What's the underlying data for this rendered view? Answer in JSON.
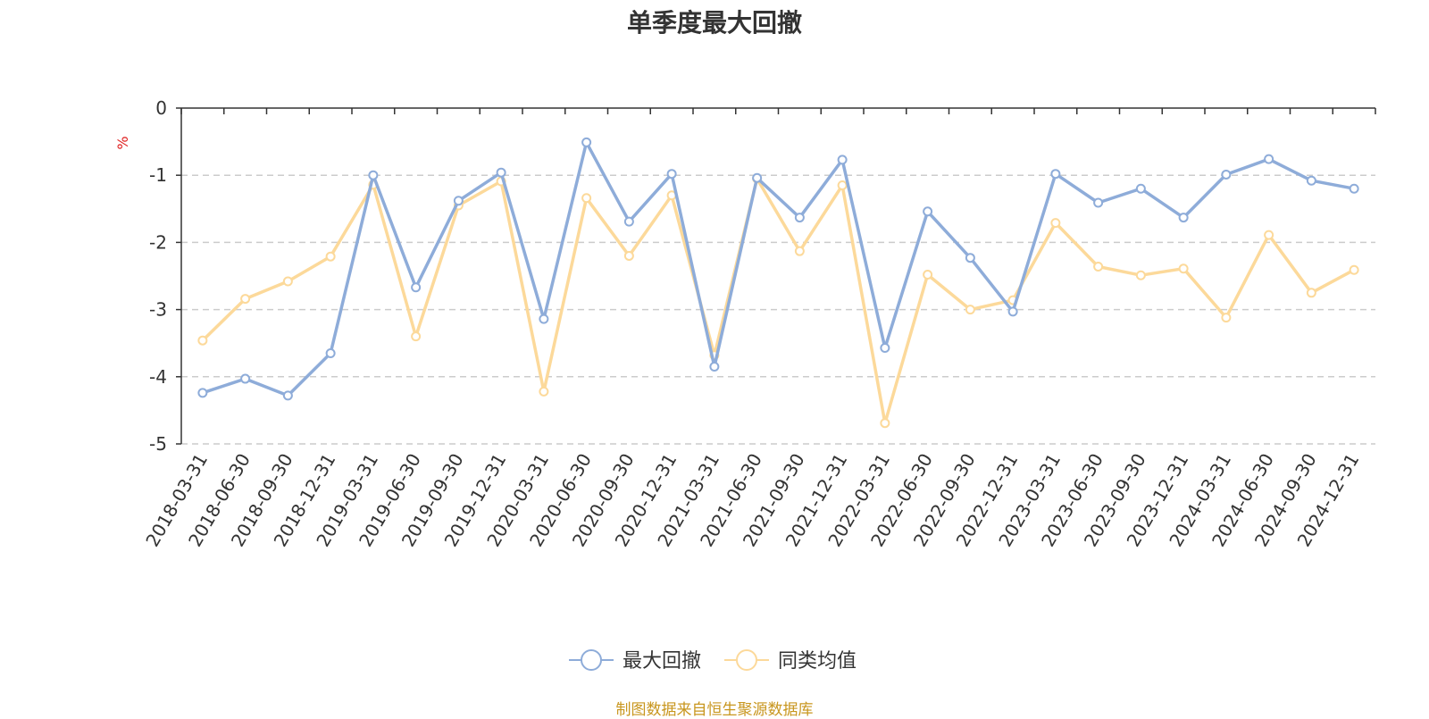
{
  "chart_data": {
    "type": "line",
    "title": "单季度最大回撤",
    "ylabel": "%",
    "ylim": [
      -5,
      0
    ],
    "yticks": [
      0,
      -1,
      -2,
      -3,
      -4,
      -5
    ],
    "grid": true,
    "legend_position": "bottom",
    "categories": [
      "2018-03-31",
      "2018-06-30",
      "2018-09-30",
      "2018-12-31",
      "2019-03-31",
      "2019-06-30",
      "2019-09-30",
      "2019-12-31",
      "2020-03-31",
      "2020-06-30",
      "2020-09-30",
      "2020-12-31",
      "2021-03-31",
      "2021-06-30",
      "2021-09-30",
      "2021-12-31",
      "2022-03-31",
      "2022-06-30",
      "2022-09-30",
      "2022-12-31",
      "2023-03-31",
      "2023-06-30",
      "2023-09-30",
      "2023-12-31",
      "2024-03-31",
      "2024-06-30",
      "2024-09-30",
      "2024-12-31"
    ],
    "series": [
      {
        "name": "最大回撤",
        "color": "#8eacd9",
        "values": [
          -4.24,
          -4.03,
          -4.28,
          -3.65,
          -1.0,
          -2.67,
          -1.38,
          -0.96,
          -3.14,
          -0.51,
          -1.69,
          -0.98,
          -3.85,
          -1.04,
          -1.63,
          -0.77,
          -3.57,
          -1.54,
          -2.23,
          -3.03,
          -0.98,
          -1.41,
          -1.2,
          -1.63,
          -0.99,
          -0.76,
          -1.08,
          -1.2
        ]
      },
      {
        "name": "同类均值",
        "color": "#fcd99a",
        "values": [
          -3.46,
          -2.84,
          -2.58,
          -2.21,
          -1.14,
          -3.4,
          -1.45,
          -1.09,
          -4.22,
          -1.34,
          -2.2,
          -1.3,
          -3.68,
          -1.05,
          -2.13,
          -1.15,
          -4.69,
          -2.48,
          -3.0,
          -2.86,
          -1.71,
          -2.36,
          -2.49,
          -2.39,
          -3.12,
          -1.89,
          -2.75,
          -2.41
        ]
      }
    ]
  },
  "source_text": "制图数据来自恒生聚源数据库"
}
